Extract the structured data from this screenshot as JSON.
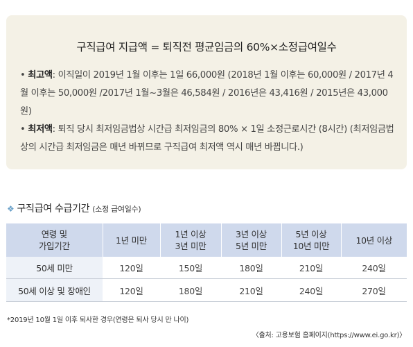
{
  "info": {
    "formula": "구직급여 지급액 = 퇴직전 평균임금의 60%×소정급여일수",
    "items": [
      {
        "head": "최고액",
        "text": ": 이직일이 2019년 1월 이후는 1일 66,000원 (2018년 1월 이후는 60,000원 / 2017년 4월 이후는 50,000원 /2017년 1월~3월은 46,584원 / 2016년은 43,416원 / 2015년은 43,000원)"
      },
      {
        "head": "최저액",
        "text": ": 퇴직 당시 최저임금법상 시간급 최저임금의 80% × 1일 소정근로시간 (8시간) (최저임금법상의 시간급 최저임금은 매년 바뀌므로 구직급여 최저액 역시 매년 바뀝니다.)"
      }
    ]
  },
  "section": {
    "title": "구직급여 수급기간",
    "subtitle": "(소정 급여일수)"
  },
  "table": {
    "headers": [
      "연령 및\n가입기간",
      "1년 미만",
      "1년 이상\n3년 미만",
      "3년 이상\n5년 미만",
      "5년 이상\n10년 미만",
      "10년 이상"
    ],
    "rows": [
      {
        "label": "50세 미만",
        "cells": [
          "120일",
          "150일",
          "180일",
          "210일",
          "240일"
        ]
      },
      {
        "label": "50세 이상 및 장애인",
        "cells": [
          "120일",
          "180일",
          "210일",
          "240일",
          "270일"
        ]
      }
    ]
  },
  "footnote": "*2019년 10월 1일 이후 퇴사한 경우(연령은 퇴사 당시 만 나이)",
  "source": "〈출처: 고용보험 홈페이지(https://www.ei.go.kr)〉",
  "colors": {
    "infobox_bg": "#f4f1e6",
    "table_header_bg": "#cfd9ec",
    "row_header_bg": "#eef2f8",
    "bullet_accent": "#6aa1c9"
  },
  "icons": {
    "section_marker": "diamond-cluster-icon"
  }
}
